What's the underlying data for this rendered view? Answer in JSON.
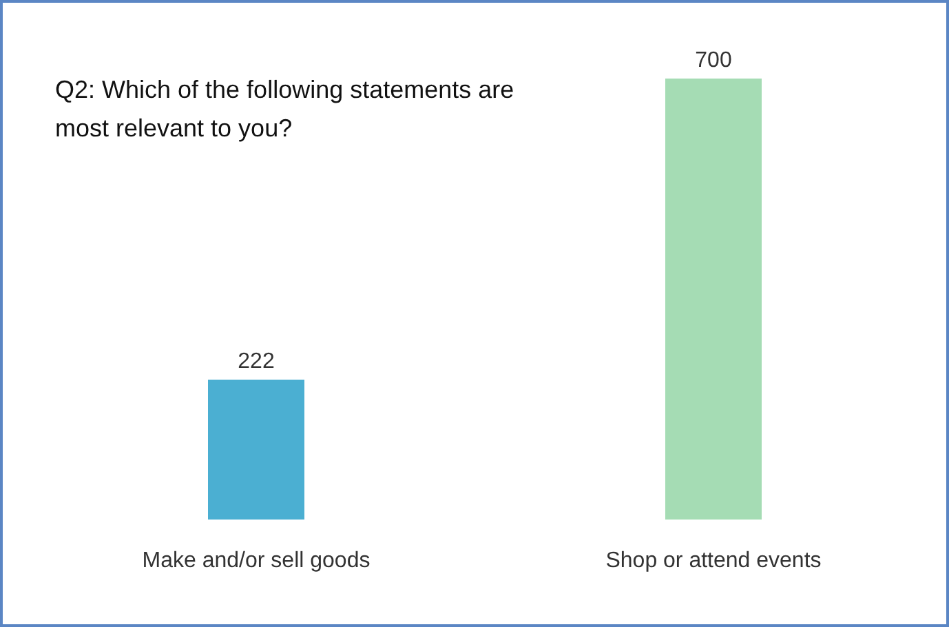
{
  "chart_data": {
    "type": "bar",
    "title": "Q2: Which of the following statements are most relevant to you?",
    "categories": [
      "Make and/or sell goods",
      "Shop or attend events"
    ],
    "values": [
      222,
      700
    ],
    "colors": [
      "#4bafd2",
      "#a5dcb4"
    ],
    "data_labels": true
  }
}
